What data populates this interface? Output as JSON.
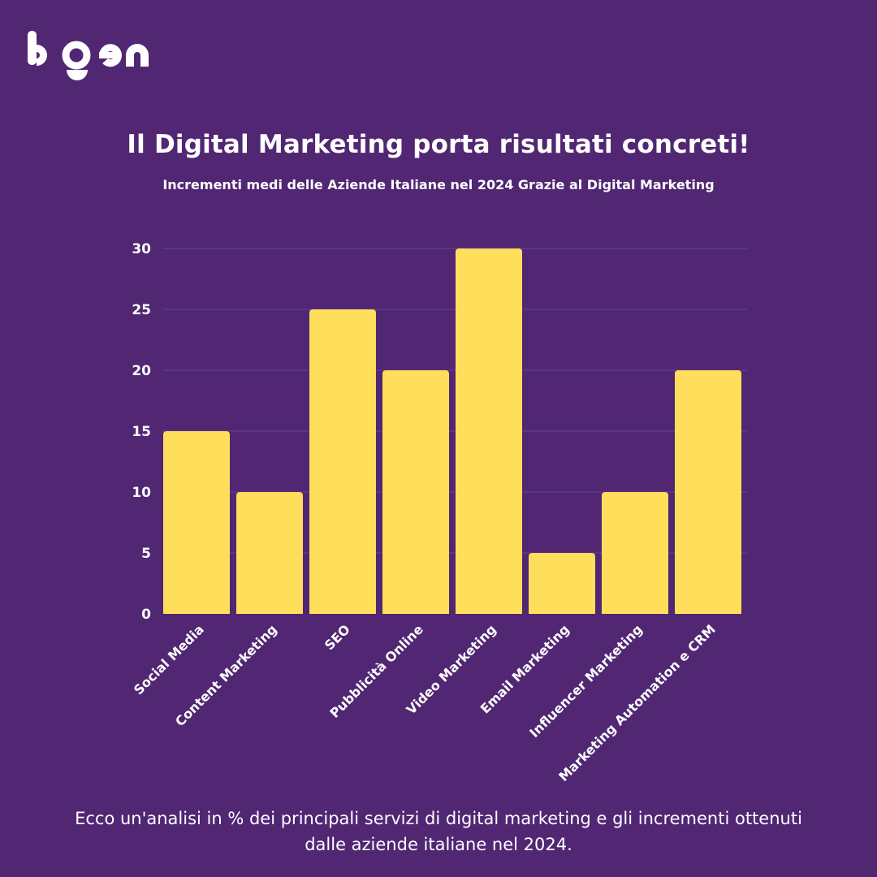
{
  "brand": {
    "logo_text": "bgen",
    "color": "#ffffff"
  },
  "header": {
    "title": "Il Digital Marketing porta risultati concreti!",
    "subtitle": "Incrementi medi delle Aziende Italiane nel 2024 Grazie al Digital Marketing"
  },
  "footer": {
    "caption": "Ecco un'analisi in % dei principali servizi di digital marketing e gli incrementi ottenuti dalle aziende italiane nel 2024."
  },
  "colors": {
    "background": "#512673",
    "bar": "#FFDE5C",
    "grid": "#62388a",
    "text": "#ffffff"
  },
  "chart_data": {
    "type": "bar",
    "categories": [
      "Social Media",
      "Content Marketing",
      "SEO",
      "Pubblicità Online",
      "Video Marketing",
      "Email Marketing",
      "Influencer Marketing",
      "Marketing Automation e CRM"
    ],
    "values": [
      15,
      10,
      25,
      20,
      30,
      5,
      10,
      20
    ],
    "yticks": [
      0,
      5,
      10,
      15,
      20,
      25,
      30
    ],
    "ylim": [
      0,
      30
    ],
    "title": "Il Digital Marketing porta risultati concreti!",
    "subtitle": "Incrementi medi delle Aziende Italiane nel 2024 Grazie al Digital Marketing",
    "xlabel": "",
    "ylabel": "",
    "grid": true,
    "legend": "none"
  }
}
